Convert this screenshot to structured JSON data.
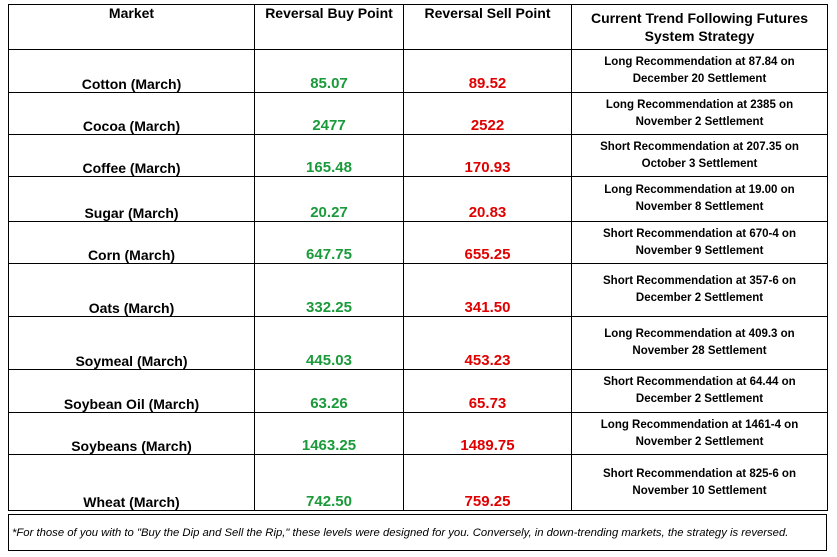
{
  "headers": {
    "market": "Market",
    "buy": "Reversal Buy Point",
    "sell": "Reversal Sell Point",
    "strategy": "Current Trend Following Futures System Strategy"
  },
  "rows": [
    {
      "market": "Cotton (March)",
      "buy": "85.07",
      "sell": "89.52",
      "rec_line1": "Long Recommendation at 87.84 on",
      "rec_line2": "December 20 Settlement"
    },
    {
      "market": "Cocoa (March)",
      "buy": "2477",
      "sell": "2522",
      "rec_line1": "Long Recommendation at 2385 on",
      "rec_line2": "November 2 Settlement"
    },
    {
      "market": "Coffee (March)",
      "buy": "165.48",
      "sell": "170.93",
      "rec_line1": "Short Recommendation at 207.35 on",
      "rec_line2": "October 3 Settlement"
    },
    {
      "market": "Sugar (March)",
      "buy": "20.27",
      "sell": "20.83",
      "rec_line1": "Long Recommendation at 19.00 on",
      "rec_line2": "November 8 Settlement"
    },
    {
      "market": "Corn (March)",
      "buy": "647.75",
      "sell": "655.25",
      "rec_line1": "Short Recommendation at 670-4 on",
      "rec_line2": "November 9 Settlement"
    },
    {
      "market": "Oats (March)",
      "buy": "332.25",
      "sell": "341.50",
      "rec_line1": "Short Recommendation at 357-6 on",
      "rec_line2": "December 2 Settlement"
    },
    {
      "market": "Soymeal (March)",
      "buy": "445.03",
      "sell": "453.23",
      "rec_line1": "Long Recommendation at 409.3 on",
      "rec_line2": "November 28 Settlement"
    },
    {
      "market": "Soybean Oil (March)",
      "buy": "63.26",
      "sell": "65.73",
      "rec_line1": "Short Recommendation at 64.44 on",
      "rec_line2": "December 2 Settlement"
    },
    {
      "market": "Soybeans (March)",
      "buy": "1463.25",
      "sell": "1489.75",
      "rec_line1": "Long Recommendation at 1461-4 on",
      "rec_line2": "November 2 Settlement"
    },
    {
      "market": "Wheat (March)",
      "buy": "742.50",
      "sell": "759.25",
      "rec_line1": "Short Recommendation at 825-6 on",
      "rec_line2": "November 10 Settlement"
    }
  ],
  "footnote": "*For those of you with to \"Buy the Dip and Sell the Rip,\" these levels were designed for you. Conversely, in down-trending markets, the strategy is reversed.",
  "colors": {
    "buy": "#1a9a3a",
    "sell": "#e00000"
  }
}
